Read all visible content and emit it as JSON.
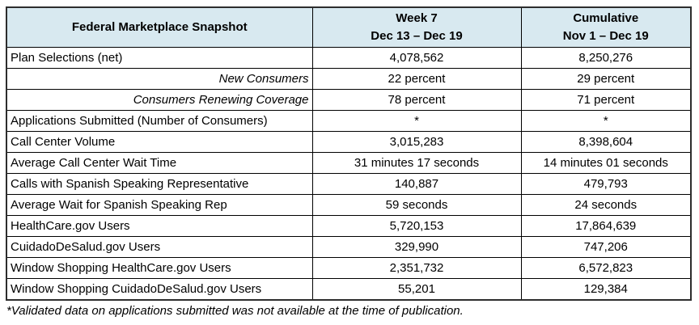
{
  "table": {
    "title": "Federal Marketplace Snapshot",
    "columns": {
      "week": {
        "line1": "Week 7",
        "line2": "Dec 13 – Dec 19"
      },
      "cumulative": {
        "line1": "Cumulative",
        "line2": "Nov 1 – Dec 19"
      }
    },
    "rows": [
      {
        "label": "Plan Selections (net)",
        "style": "normal",
        "week": "4,078,562",
        "cumulative": "8,250,276"
      },
      {
        "label": "New Consumers",
        "style": "sub",
        "week": "22 percent",
        "cumulative": "29 percent"
      },
      {
        "label": "Consumers Renewing Coverage",
        "style": "sub",
        "week": "78 percent",
        "cumulative": "71 percent"
      },
      {
        "label": "Applications Submitted (Number of Consumers)",
        "style": "normal",
        "week": "*",
        "cumulative": "*"
      },
      {
        "label": "Call Center Volume",
        "style": "normal",
        "week": "3,015,283",
        "cumulative": "8,398,604"
      },
      {
        "label": "Average Call Center Wait Time",
        "style": "normal",
        "week": "31 minutes 17 seconds",
        "cumulative": "14 minutes 01 seconds"
      },
      {
        "label": "Calls with Spanish Speaking Representative",
        "style": "normal",
        "week": "140,887",
        "cumulative": "479,793"
      },
      {
        "label": "Average Wait for Spanish Speaking Rep",
        "style": "normal",
        "week": "59 seconds",
        "cumulative": "24 seconds"
      },
      {
        "label": "HealthCare.gov Users",
        "style": "normal",
        "week": "5,720,153",
        "cumulative": "17,864,639"
      },
      {
        "label": "CuidadoDeSalud.gov Users",
        "style": "normal",
        "week": "329,990",
        "cumulative": "747,206"
      },
      {
        "label": "Window Shopping HealthCare.gov Users",
        "style": "normal",
        "week": "2,351,732",
        "cumulative": "6,572,823"
      },
      {
        "label": "Window Shopping CuidadoDeSalud.gov Users",
        "style": "normal",
        "week": "55,201",
        "cumulative": "129,384"
      }
    ],
    "footnote": "*Validated data on applications submitted was not available at the time of publication.",
    "colors": {
      "header_fill": "#d8e9f0",
      "border": "#000000"
    }
  }
}
